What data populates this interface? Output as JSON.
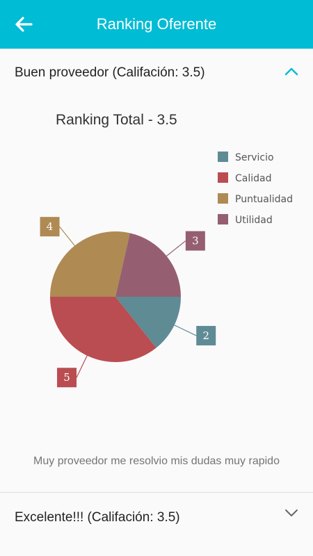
{
  "app": {
    "title": "Ranking Oferente"
  },
  "icons": {
    "back": "arrow-left-icon",
    "collapse": "chevron-up-icon",
    "expand": "chevron-down-icon"
  },
  "colors": {
    "header": "#00bcd4",
    "accent": "#00bcd4"
  },
  "panels": [
    {
      "title": "Buen proveedor (Califación: 3.5)",
      "expanded": true,
      "comment": "Muy proveedor me resolvio mis dudas muy rapido"
    },
    {
      "title": "Excelente!!! (Califación: 3.5)",
      "expanded": false
    }
  ],
  "chart_data": {
    "type": "pie",
    "title": "Ranking Total - 3.5",
    "legend_position": "top-right",
    "slices": [
      {
        "name": "Servicio",
        "value": 2,
        "color": "#5f8b95"
      },
      {
        "name": "Calidad",
        "value": 5,
        "color": "#ba4d51"
      },
      {
        "name": "Puntualidad",
        "value": 4,
        "color": "#af8a53"
      },
      {
        "name": "Utilidad",
        "value": 3,
        "color": "#955f71"
      }
    ]
  }
}
